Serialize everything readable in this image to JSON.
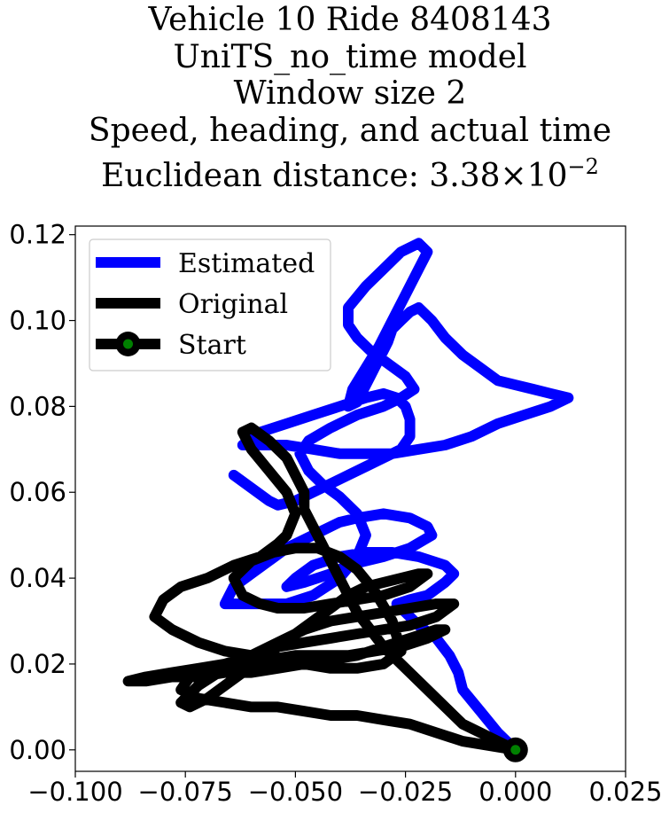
{
  "chart_data": {
    "type": "line",
    "title_lines": [
      "Vehicle 10 Ride 8408143",
      "UniTS_no_time model",
      "Window size 2",
      "Speed, heading, and actual time"
    ],
    "title_distance_prefix": "Euclidean distance: 3.38×10",
    "title_distance_exponent": "−2",
    "xlim": [
      -0.1,
      0.025
    ],
    "ylim": [
      -0.005,
      0.122
    ],
    "xticks": [
      -0.1,
      -0.075,
      -0.05,
      -0.025,
      0.0,
      0.025
    ],
    "xtick_labels": [
      "−0.100",
      "−0.075",
      "−0.050",
      "−0.025",
      "0.000",
      "0.025"
    ],
    "yticks": [
      0.0,
      0.02,
      0.04,
      0.06,
      0.08,
      0.1,
      0.12
    ],
    "ytick_labels": [
      "0.00",
      "0.02",
      "0.04",
      "0.06",
      "0.08",
      "0.10",
      "0.12"
    ],
    "grid": false,
    "legend_position": "upper-left",
    "legend": [
      "Estimated",
      "Original",
      "Start"
    ],
    "start": {
      "x": 0.0,
      "y": 0.0
    },
    "series": [
      {
        "name": "Estimated",
        "color": "#0000ff",
        "x": [
          0.0,
          -0.004,
          -0.008,
          -0.012,
          -0.013,
          -0.015,
          -0.018,
          -0.022,
          -0.025,
          -0.027,
          -0.024,
          -0.02,
          -0.016,
          -0.014,
          -0.016,
          -0.022,
          -0.028,
          -0.034,
          -0.04,
          -0.046,
          -0.05,
          -0.052,
          -0.048,
          -0.042,
          -0.038,
          -0.034,
          -0.03,
          -0.024,
          -0.019,
          -0.02,
          -0.024,
          -0.03,
          -0.036,
          -0.04,
          -0.044,
          -0.048,
          -0.052,
          -0.056,
          -0.06,
          -0.064,
          -0.066,
          -0.06,
          -0.052,
          -0.046,
          -0.04,
          -0.036,
          -0.034,
          -0.036,
          -0.04,
          -0.044,
          -0.047,
          -0.049,
          -0.047,
          -0.042,
          -0.036,
          -0.03,
          -0.026,
          -0.023,
          -0.025,
          -0.029,
          -0.033,
          -0.036,
          -0.038,
          -0.038,
          -0.034,
          -0.03,
          -0.026,
          -0.022,
          -0.02,
          -0.022,
          -0.025,
          -0.028,
          -0.031,
          -0.034,
          -0.037,
          -0.038,
          -0.036,
          -0.035,
          -0.034,
          -0.033,
          -0.032,
          -0.031,
          -0.03,
          -0.029,
          -0.028,
          -0.026,
          -0.024,
          -0.022,
          -0.019,
          -0.016,
          -0.012,
          -0.008,
          -0.004,
          0.0,
          0.004,
          0.008,
          0.012,
          0.008,
          0.002,
          -0.004,
          -0.01,
          -0.016,
          -0.022,
          -0.028,
          -0.034,
          -0.04,
          -0.046,
          -0.052,
          -0.058,
          -0.062,
          -0.058,
          -0.052,
          -0.046,
          -0.04,
          -0.034,
          -0.03,
          -0.027,
          -0.025,
          -0.024,
          -0.024,
          -0.026,
          -0.03,
          -0.034,
          -0.038,
          -0.042,
          -0.046,
          -0.05,
          -0.054,
          -0.056,
          -0.06,
          -0.064
        ],
        "y": [
          0.0,
          0.004,
          0.009,
          0.014,
          0.018,
          0.022,
          0.026,
          0.029,
          0.032,
          0.034,
          0.035,
          0.036,
          0.039,
          0.041,
          0.043,
          0.045,
          0.046,
          0.046,
          0.045,
          0.043,
          0.04,
          0.038,
          0.039,
          0.041,
          0.043,
          0.044,
          0.045,
          0.047,
          0.05,
          0.052,
          0.054,
          0.055,
          0.054,
          0.053,
          0.051,
          0.049,
          0.047,
          0.044,
          0.041,
          0.038,
          0.034,
          0.034,
          0.034,
          0.036,
          0.04,
          0.045,
          0.05,
          0.055,
          0.059,
          0.062,
          0.065,
          0.069,
          0.072,
          0.075,
          0.078,
          0.08,
          0.082,
          0.084,
          0.087,
          0.09,
          0.093,
          0.096,
          0.099,
          0.103,
          0.108,
          0.112,
          0.116,
          0.118,
          0.116,
          0.112,
          0.106,
          0.1,
          0.094,
          0.089,
          0.084,
          0.08,
          0.081,
          0.083,
          0.085,
          0.087,
          0.089,
          0.091,
          0.093,
          0.095,
          0.098,
          0.1,
          0.102,
          0.103,
          0.1,
          0.096,
          0.092,
          0.089,
          0.086,
          0.085,
          0.084,
          0.083,
          0.082,
          0.08,
          0.078,
          0.076,
          0.073,
          0.071,
          0.07,
          0.069,
          0.069,
          0.069,
          0.07,
          0.071,
          0.071,
          0.071,
          0.074,
          0.076,
          0.078,
          0.08,
          0.082,
          0.083,
          0.082,
          0.08,
          0.077,
          0.073,
          0.07,
          0.068,
          0.066,
          0.064,
          0.062,
          0.06,
          0.058,
          0.057,
          0.058,
          0.061,
          0.064
        ]
      },
      {
        "name": "Original",
        "color": "#000000",
        "x": [
          0.0,
          -0.006,
          -0.012,
          -0.018,
          -0.024,
          -0.03,
          -0.036,
          -0.042,
          -0.048,
          -0.054,
          -0.06,
          -0.066,
          -0.072,
          -0.076,
          -0.074,
          -0.068,
          -0.062,
          -0.056,
          -0.05,
          -0.044,
          -0.038,
          -0.032,
          -0.026,
          -0.02,
          -0.016,
          -0.018,
          -0.024,
          -0.03,
          -0.036,
          -0.042,
          -0.048,
          -0.054,
          -0.06,
          -0.066,
          -0.072,
          -0.078,
          -0.084,
          -0.088,
          -0.084,
          -0.078,
          -0.072,
          -0.066,
          -0.06,
          -0.054,
          -0.048,
          -0.042,
          -0.036,
          -0.03,
          -0.024,
          -0.018,
          -0.014,
          -0.018,
          -0.024,
          -0.03,
          -0.036,
          -0.042,
          -0.048,
          -0.054,
          -0.06,
          -0.066,
          -0.072,
          -0.076,
          -0.074,
          -0.07,
          -0.066,
          -0.062,
          -0.058,
          -0.054,
          -0.05,
          -0.046,
          -0.042,
          -0.038,
          -0.034,
          -0.03,
          -0.026,
          -0.022,
          -0.02,
          -0.024,
          -0.03,
          -0.036,
          -0.042,
          -0.048,
          -0.054,
          -0.058,
          -0.062,
          -0.064,
          -0.06,
          -0.055,
          -0.05,
          -0.045,
          -0.04,
          -0.036,
          -0.032,
          -0.028,
          -0.026,
          -0.03,
          -0.036,
          -0.042,
          -0.048,
          -0.054,
          -0.06,
          -0.066,
          -0.072,
          -0.078,
          -0.082,
          -0.08,
          -0.076,
          -0.07,
          -0.064,
          -0.058,
          -0.054,
          -0.052,
          -0.05,
          -0.052,
          -0.056,
          -0.06,
          -0.062,
          -0.06,
          -0.056,
          -0.052,
          -0.05,
          -0.048,
          -0.048,
          -0.046,
          -0.044,
          -0.042,
          -0.04,
          -0.038,
          -0.036,
          -0.033,
          -0.03,
          -0.026,
          -0.022,
          -0.018,
          -0.014,
          -0.012,
          -0.008,
          -0.004,
          0.0
        ],
        "y": [
          0.0,
          0.001,
          0.002,
          0.004,
          0.006,
          0.007,
          0.008,
          0.008,
          0.009,
          0.01,
          0.01,
          0.011,
          0.012,
          0.014,
          0.017,
          0.019,
          0.02,
          0.021,
          0.022,
          0.022,
          0.022,
          0.023,
          0.024,
          0.026,
          0.028,
          0.028,
          0.026,
          0.024,
          0.022,
          0.021,
          0.02,
          0.019,
          0.018,
          0.018,
          0.017,
          0.017,
          0.016,
          0.016,
          0.017,
          0.018,
          0.019,
          0.02,
          0.022,
          0.024,
          0.025,
          0.026,
          0.027,
          0.028,
          0.029,
          0.031,
          0.034,
          0.034,
          0.033,
          0.032,
          0.031,
          0.03,
          0.028,
          0.025,
          0.022,
          0.019,
          0.015,
          0.011,
          0.01,
          0.012,
          0.015,
          0.018,
          0.021,
          0.024,
          0.027,
          0.03,
          0.033,
          0.036,
          0.038,
          0.039,
          0.04,
          0.041,
          0.041,
          0.038,
          0.036,
          0.035,
          0.034,
          0.033,
          0.033,
          0.034,
          0.036,
          0.04,
          0.044,
          0.046,
          0.047,
          0.047,
          0.045,
          0.042,
          0.037,
          0.03,
          0.023,
          0.02,
          0.019,
          0.019,
          0.02,
          0.021,
          0.022,
          0.023,
          0.025,
          0.028,
          0.031,
          0.035,
          0.038,
          0.04,
          0.043,
          0.045,
          0.048,
          0.05,
          0.055,
          0.06,
          0.065,
          0.07,
          0.074,
          0.075,
          0.072,
          0.068,
          0.064,
          0.06,
          0.056,
          0.052,
          0.048,
          0.044,
          0.04,
          0.036,
          0.032,
          0.028,
          0.024,
          0.02,
          0.016,
          0.012,
          0.008,
          0.006,
          0.004,
          0.002,
          0.0
        ]
      }
    ]
  }
}
